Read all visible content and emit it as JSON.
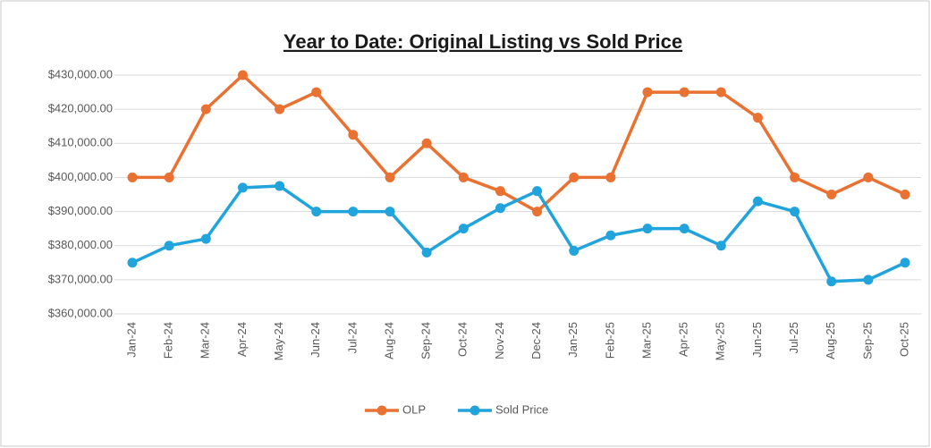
{
  "chart_data": {
    "type": "line",
    "title": "Year to Date: Original Listing vs Sold Price",
    "categories": [
      "Jan-24",
      "Feb-24",
      "Mar-24",
      "Apr-24",
      "May-24",
      "Jun-24",
      "Jul-24",
      "Aug-24",
      "Sep-24",
      "Oct-24",
      "Nov-24",
      "Dec-24",
      "Jan-25",
      "Feb-25",
      "Mar-25",
      "Apr-25",
      "May-25",
      "Jun-25",
      "Jul-25",
      "Aug-25",
      "Sep-25",
      "Oct-25"
    ],
    "series": [
      {
        "name": "OLP",
        "color": "#e97132",
        "values": [
          400000,
          400000,
          420000,
          430000,
          420000,
          425000,
          412500,
          400000,
          410000,
          400000,
          396000,
          390000,
          400000,
          400000,
          425000,
          425000,
          425000,
          417500,
          400000,
          395000,
          400000,
          395000
        ]
      },
      {
        "name": "Sold Price",
        "color": "#21a3dc",
        "values": [
          375000,
          380000,
          382000,
          397000,
          397500,
          390000,
          390000,
          390000,
          378000,
          385000,
          391000,
          396000,
          378500,
          383000,
          385000,
          385000,
          380000,
          393000,
          390000,
          369500,
          370000,
          375000
        ]
      }
    ],
    "ylim": [
      360000,
      430000
    ],
    "yticks": [
      {
        "value": 360000,
        "label": "$360,000.00"
      },
      {
        "value": 370000,
        "label": "$370,000.00"
      },
      {
        "value": 380000,
        "label": "$380,000.00"
      },
      {
        "value": 390000,
        "label": "$390,000.00"
      },
      {
        "value": 400000,
        "label": "$400,000.00"
      },
      {
        "value": 410000,
        "label": "$410,000.00"
      },
      {
        "value": 420000,
        "label": "$420,000.00"
      },
      {
        "value": 430000,
        "label": "$430,000.00"
      }
    ],
    "grid": true,
    "legend": "bottom"
  }
}
